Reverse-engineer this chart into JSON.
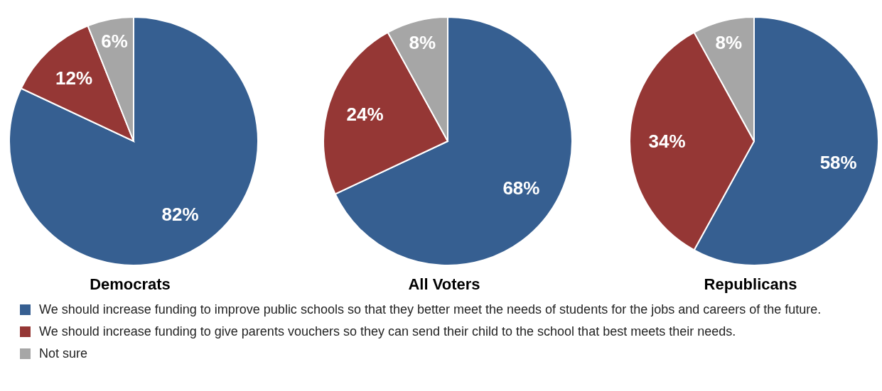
{
  "chart_data": [
    {
      "type": "pie",
      "title": "Democrats",
      "categories": [
        "We should increase funding to improve public schools so that they better meet the needs of students for the jobs and careers of the future.",
        "We should increase funding to give parents vouchers so they can send their child to the school that best meets their needs.",
        "Not sure"
      ],
      "values": [
        82,
        12,
        6
      ],
      "colors": [
        "#365f91",
        "#953735",
        "#a6a6a6"
      ],
      "value_labels": [
        "82%",
        "12%",
        "6%"
      ],
      "legend": "bottom"
    },
    {
      "type": "pie",
      "title": "All Voters",
      "categories": [
        null,
        null,
        null
      ],
      "values": [
        68,
        24,
        8
      ],
      "colors": [
        "#365f91",
        "#953735",
        "#a6a6a6"
      ],
      "value_labels": [
        "68%",
        "24%",
        "8%"
      ]
    },
    {
      "type": "pie",
      "title": "Republicans",
      "categories": [
        null,
        null,
        null
      ],
      "values": [
        58,
        34,
        8
      ],
      "colors": [
        "#365f91",
        "#953735",
        "#a6a6a6"
      ],
      "value_labels": [
        "58%",
        "34%",
        "8%"
      ]
    }
  ]
}
